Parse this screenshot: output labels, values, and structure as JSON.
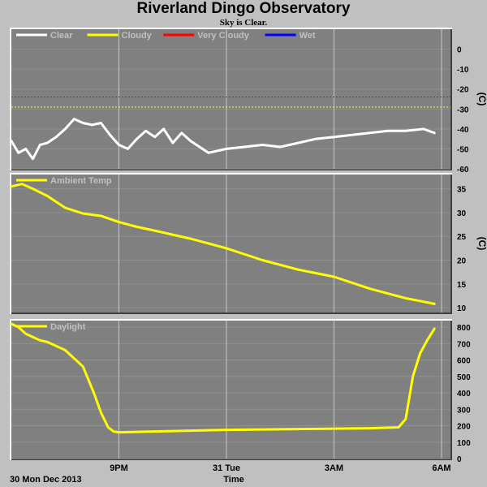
{
  "header": {
    "title": "Riverland Dingo Observatory",
    "subtitle": "Sky is Clear."
  },
  "footer": {
    "date_label": "30 Mon Dec 2013",
    "xlabel": "Time"
  },
  "colors": {
    "background": "#c0c0c0",
    "plot_bg": "#808080",
    "grid": "#c8c8c8",
    "clear": "#ffffff",
    "cloudy": "#ffff00",
    "very_cloudy": "#ff0000",
    "wet": "#0000ff",
    "legend_text": "#c0c0c0"
  },
  "chart_data": [
    {
      "type": "line",
      "name": "sky",
      "ylabel": "(C)",
      "ylim": [
        -60,
        10
      ],
      "yticks": [
        0,
        -10,
        -20,
        -30,
        -40,
        -50,
        -60
      ],
      "legend": [
        {
          "label": "Clear",
          "color": "#ffffff"
        },
        {
          "label": "Cloudy",
          "color": "#ffff00"
        },
        {
          "label": "Very Cloudy",
          "color": "#ff0000"
        },
        {
          "label": "Wet",
          "color": "#0000ff"
        }
      ],
      "thresholds": [
        {
          "value": -24,
          "color": "#ff0000"
        },
        {
          "value": -29,
          "color": "#ffff00"
        }
      ],
      "x_hours": [
        0,
        0.2,
        0.4,
        0.6,
        0.8,
        1.0,
        1.25,
        1.5,
        1.75,
        2.0,
        2.25,
        2.5,
        2.75,
        3.0,
        3.25,
        3.5,
        3.75,
        4.0,
        4.25,
        4.5,
        4.75,
        5.0,
        5.5,
        6.0,
        6.5,
        7.0,
        7.5,
        8.0,
        8.5,
        9.0,
        9.5,
        10.0,
        10.5,
        11.0,
        11.5,
        11.8
      ],
      "series": [
        {
          "color": "#ffffff",
          "values": [
            -46,
            -52,
            -50,
            -55,
            -48,
            -47,
            -44,
            -40,
            -35,
            -37,
            -38,
            -37,
            -43,
            -48,
            -50,
            -45,
            -41,
            -44,
            -40,
            -47,
            -42,
            -46,
            -52,
            -50,
            -49,
            -48,
            -49,
            -47,
            -45,
            -44,
            -43,
            -42,
            -41,
            -41,
            -40,
            -42
          ]
        }
      ]
    },
    {
      "type": "line",
      "name": "ambient",
      "ylabel": "(C)",
      "ylim": [
        9,
        38
      ],
      "yticks": [
        35,
        30,
        25,
        20,
        15,
        10
      ],
      "legend": [
        {
          "label": "Ambient Temp",
          "color": "#ffff00"
        }
      ],
      "x_hours": [
        0,
        0.3,
        0.6,
        1.0,
        1.5,
        2.0,
        2.5,
        3.0,
        3.5,
        4.0,
        5.0,
        6.0,
        7.0,
        8.0,
        9.0,
        10.0,
        11.0,
        11.8
      ],
      "series": [
        {
          "color": "#ffff00",
          "values": [
            35.5,
            36,
            35,
            33.5,
            31,
            29.8,
            29.3,
            28,
            27,
            26.2,
            24.5,
            22.5,
            20,
            18,
            16.5,
            14,
            12,
            10.8
          ]
        }
      ]
    },
    {
      "type": "line",
      "name": "daylight",
      "ylabel": "",
      "ylim": [
        0,
        840
      ],
      "yticks": [
        800,
        700,
        600,
        500,
        400,
        300,
        200,
        100,
        0
      ],
      "legend": [
        {
          "label": "Daylight",
          "color": "#ffff00"
        }
      ],
      "x_hours": [
        0,
        0.2,
        0.4,
        0.6,
        0.8,
        1.0,
        1.5,
        2.0,
        2.3,
        2.5,
        2.7,
        2.85,
        3.0,
        4.0,
        6.0,
        8.0,
        10.0,
        10.8,
        11.0,
        11.2,
        11.4,
        11.6,
        11.8
      ],
      "series": [
        {
          "color": "#ffff00",
          "values": [
            820,
            800,
            760,
            740,
            720,
            710,
            660,
            560,
            400,
            280,
            190,
            165,
            160,
            165,
            175,
            180,
            185,
            190,
            240,
            500,
            640,
            720,
            790
          ]
        }
      ]
    }
  ],
  "x_axis": {
    "ticks": [
      {
        "hour": 3,
        "label": "9PM"
      },
      {
        "hour": 6,
        "label": "31 Tue"
      },
      {
        "hour": 9,
        "label": "3AM"
      },
      {
        "hour": 12,
        "label": "6AM"
      }
    ]
  }
}
